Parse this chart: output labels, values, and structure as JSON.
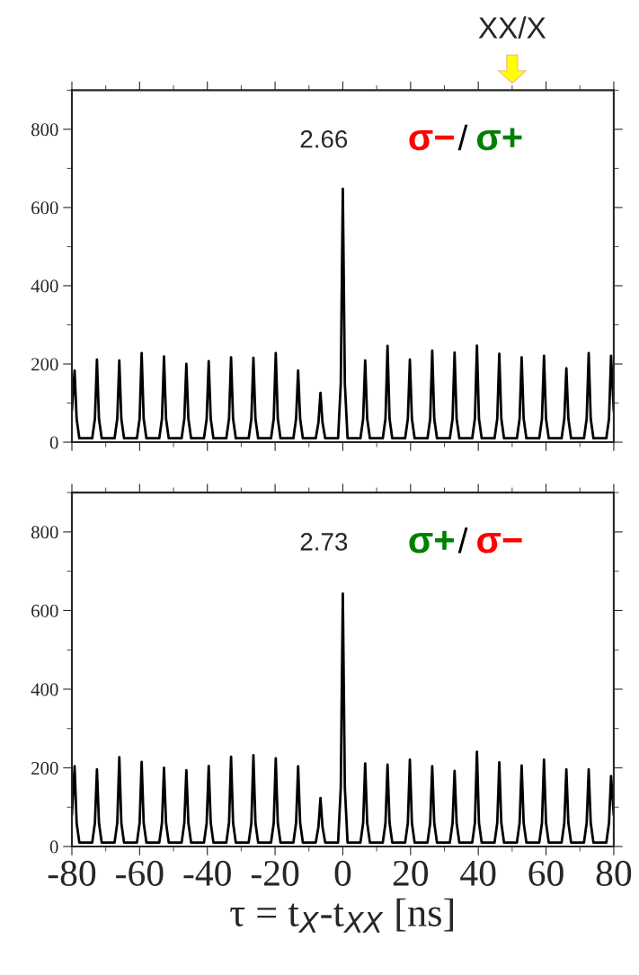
{
  "chart_data": [
    {
      "type": "line",
      "color": "#000000",
      "xlim": [
        -80,
        80
      ],
      "xticks": [
        -80,
        -60,
        -40,
        -20,
        0,
        20,
        40,
        60,
        80
      ],
      "ylim": [
        0,
        900
      ],
      "yticks": [
        0,
        200,
        400,
        600,
        800
      ],
      "tick_labels": "y",
      "grid": false,
      "legend": false,
      "x": [
        -80,
        -79.2,
        -78.6,
        -77.8,
        -74,
        -73.2,
        -72.6,
        -72,
        -71.2,
        -67.4,
        -66.6,
        -66,
        -65.4,
        -64.6,
        -60.8,
        -60,
        -59.4,
        -58.8,
        -58,
        -54.2,
        -53.4,
        -52.8,
        -52.2,
        -51.4,
        -47.6,
        -46.8,
        -46.2,
        -45.6,
        -44.8,
        -41,
        -40.2,
        -39.6,
        -39,
        -38.2,
        -34.4,
        -33.6,
        -33,
        -32.4,
        -31.6,
        -27.8,
        -27,
        -26.4,
        -25.8,
        -25,
        -21.2,
        -20.4,
        -19.8,
        -19.2,
        -18.4,
        -14.6,
        -13.8,
        -13.2,
        -12.6,
        -11.8,
        -8,
        -7.2,
        -6.6,
        -6,
        -5.2,
        -1.4,
        -0.6,
        0,
        0.6,
        1.4,
        5.2,
        6,
        6.6,
        7.2,
        8,
        11.8,
        12.6,
        13.2,
        13.8,
        14.6,
        18.4,
        19.2,
        19.8,
        20.4,
        21.2,
        25,
        25.8,
        26.4,
        27,
        27.8,
        31.6,
        32.4,
        33,
        33.6,
        34.4,
        38.2,
        39,
        39.6,
        40.2,
        41,
        44.8,
        45.6,
        46.2,
        46.8,
        47.6,
        51.4,
        52.2,
        52.8,
        53.4,
        54.2,
        58,
        58.8,
        59.4,
        60,
        60.8,
        64.6,
        65.4,
        66,
        66.6,
        67.4,
        71.2,
        72,
        72.6,
        73.2,
        74,
        77.8,
        78.6,
        79.2,
        80
      ],
      "values": [
        80,
        183,
        60,
        10,
        10,
        60,
        211,
        60,
        10,
        10,
        60,
        209,
        60,
        10,
        10,
        60,
        228,
        60,
        10,
        10,
        60,
        219,
        60,
        10,
        10,
        60,
        200,
        60,
        10,
        10,
        60,
        207,
        60,
        10,
        10,
        60,
        217,
        60,
        10,
        10,
        60,
        216,
        60,
        10,
        10,
        60,
        228,
        60,
        10,
        10,
        60,
        183,
        60,
        10,
        10,
        50,
        126,
        50,
        10,
        10,
        150,
        648,
        150,
        10,
        10,
        60,
        209,
        60,
        10,
        10,
        60,
        246,
        60,
        10,
        10,
        60,
        211,
        60,
        10,
        10,
        60,
        234,
        60,
        10,
        10,
        60,
        229,
        60,
        10,
        10,
        60,
        247,
        60,
        10,
        10,
        60,
        226,
        60,
        10,
        10,
        60,
        217,
        60,
        10,
        10,
        60,
        221,
        60,
        10,
        10,
        60,
        189,
        60,
        10,
        10,
        60,
        228,
        60,
        10,
        10,
        60,
        221,
        80
      ],
      "annotations": [
        "2.66",
        "σ−",
        "/",
        "σ+",
        "XX/X"
      ]
    },
    {
      "type": "line",
      "color": "#000000",
      "xlim": [
        -80,
        80
      ],
      "xticks": [
        -80,
        -60,
        -40,
        -20,
        0,
        20,
        40,
        60,
        80
      ],
      "ylim": [
        0,
        900
      ],
      "yticks": [
        0,
        200,
        400,
        600,
        800
      ],
      "grid": false,
      "legend": false,
      "xlabel": "τ = t$_{X}$-t$_{XX}$ [ns]",
      "x": [
        -80,
        -79.2,
        -78.6,
        -77.8,
        -74,
        -73.2,
        -72.6,
        -72,
        -71.2,
        -67.4,
        -66.6,
        -66,
        -65.4,
        -64.6,
        -60.8,
        -60,
        -59.4,
        -58.8,
        -58,
        -54.2,
        -53.4,
        -52.8,
        -52.2,
        -51.4,
        -47.6,
        -46.8,
        -46.2,
        -45.6,
        -44.8,
        -41,
        -40.2,
        -39.6,
        -39,
        -38.2,
        -34.4,
        -33.6,
        -33,
        -32.4,
        -31.6,
        -27.8,
        -27,
        -26.4,
        -25.8,
        -25,
        -21.2,
        -20.4,
        -19.8,
        -19.2,
        -18.4,
        -14.6,
        -13.8,
        -13.2,
        -12.6,
        -11.8,
        -8,
        -7.2,
        -6.6,
        -6,
        -5.2,
        -1.4,
        -0.6,
        0,
        0.6,
        1.4,
        5.2,
        6,
        6.6,
        7.2,
        8,
        11.8,
        12.6,
        13.2,
        13.8,
        14.6,
        18.4,
        19.2,
        19.8,
        20.4,
        21.2,
        25,
        25.8,
        26.4,
        27,
        27.8,
        31.6,
        32.4,
        33,
        33.6,
        34.4,
        38.2,
        39,
        39.6,
        40.2,
        41,
        44.8,
        45.6,
        46.2,
        46.8,
        47.6,
        51.4,
        52.2,
        52.8,
        53.4,
        54.2,
        58,
        58.8,
        59.4,
        60,
        60.8,
        64.6,
        65.4,
        66,
        66.6,
        67.4,
        71.2,
        72,
        72.6,
        73.2,
        74,
        77.8,
        78.6,
        79.2,
        80
      ],
      "values": [
        80,
        204,
        60,
        10,
        10,
        60,
        196,
        60,
        10,
        10,
        60,
        227,
        60,
        10,
        10,
        60,
        215,
        60,
        10,
        10,
        60,
        200,
        60,
        10,
        10,
        60,
        194,
        60,
        10,
        10,
        60,
        205,
        60,
        10,
        10,
        60,
        228,
        60,
        10,
        10,
        60,
        232,
        60,
        10,
        10,
        60,
        224,
        60,
        10,
        10,
        60,
        204,
        60,
        10,
        10,
        50,
        123,
        50,
        10,
        10,
        150,
        643,
        150,
        10,
        10,
        60,
        211,
        60,
        10,
        10,
        60,
        208,
        60,
        10,
        10,
        60,
        221,
        60,
        10,
        10,
        60,
        204,
        60,
        10,
        10,
        60,
        192,
        60,
        10,
        10,
        60,
        241,
        60,
        10,
        10,
        60,
        214,
        60,
        10,
        10,
        60,
        206,
        60,
        10,
        10,
        60,
        221,
        60,
        10,
        10,
        60,
        196,
        60,
        10,
        10,
        60,
        196,
        60,
        10,
        10,
        60,
        179,
        80
      ],
      "annotations": [
        "2.73",
        "σ+",
        "/",
        "σ−"
      ]
    }
  ]
}
